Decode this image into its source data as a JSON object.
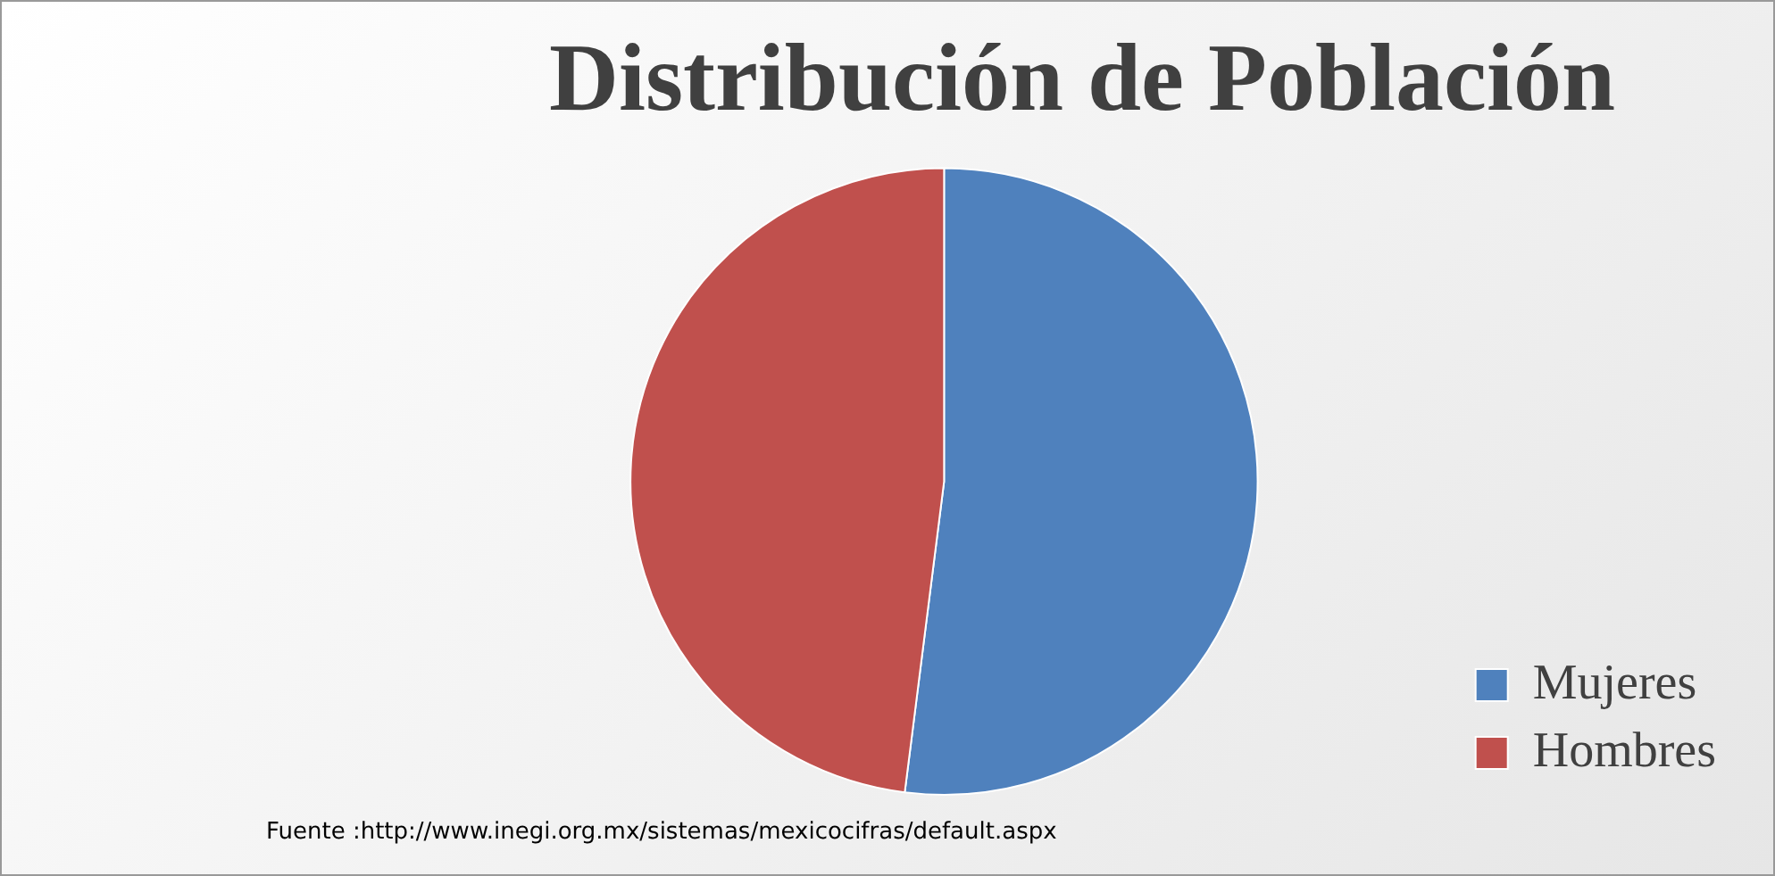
{
  "chart_data": {
    "type": "pie",
    "title": "Distribución de Población",
    "categories": [
      "Mujeres",
      "Hombres"
    ],
    "values": [
      52,
      48
    ],
    "colors": [
      "#4f81bd",
      "#c0504d"
    ],
    "legend": "bottom right",
    "annotations": [
      "Fuente :http://www.inegi.org.mx/sistemas/mexicocifras/default.aspx"
    ]
  }
}
